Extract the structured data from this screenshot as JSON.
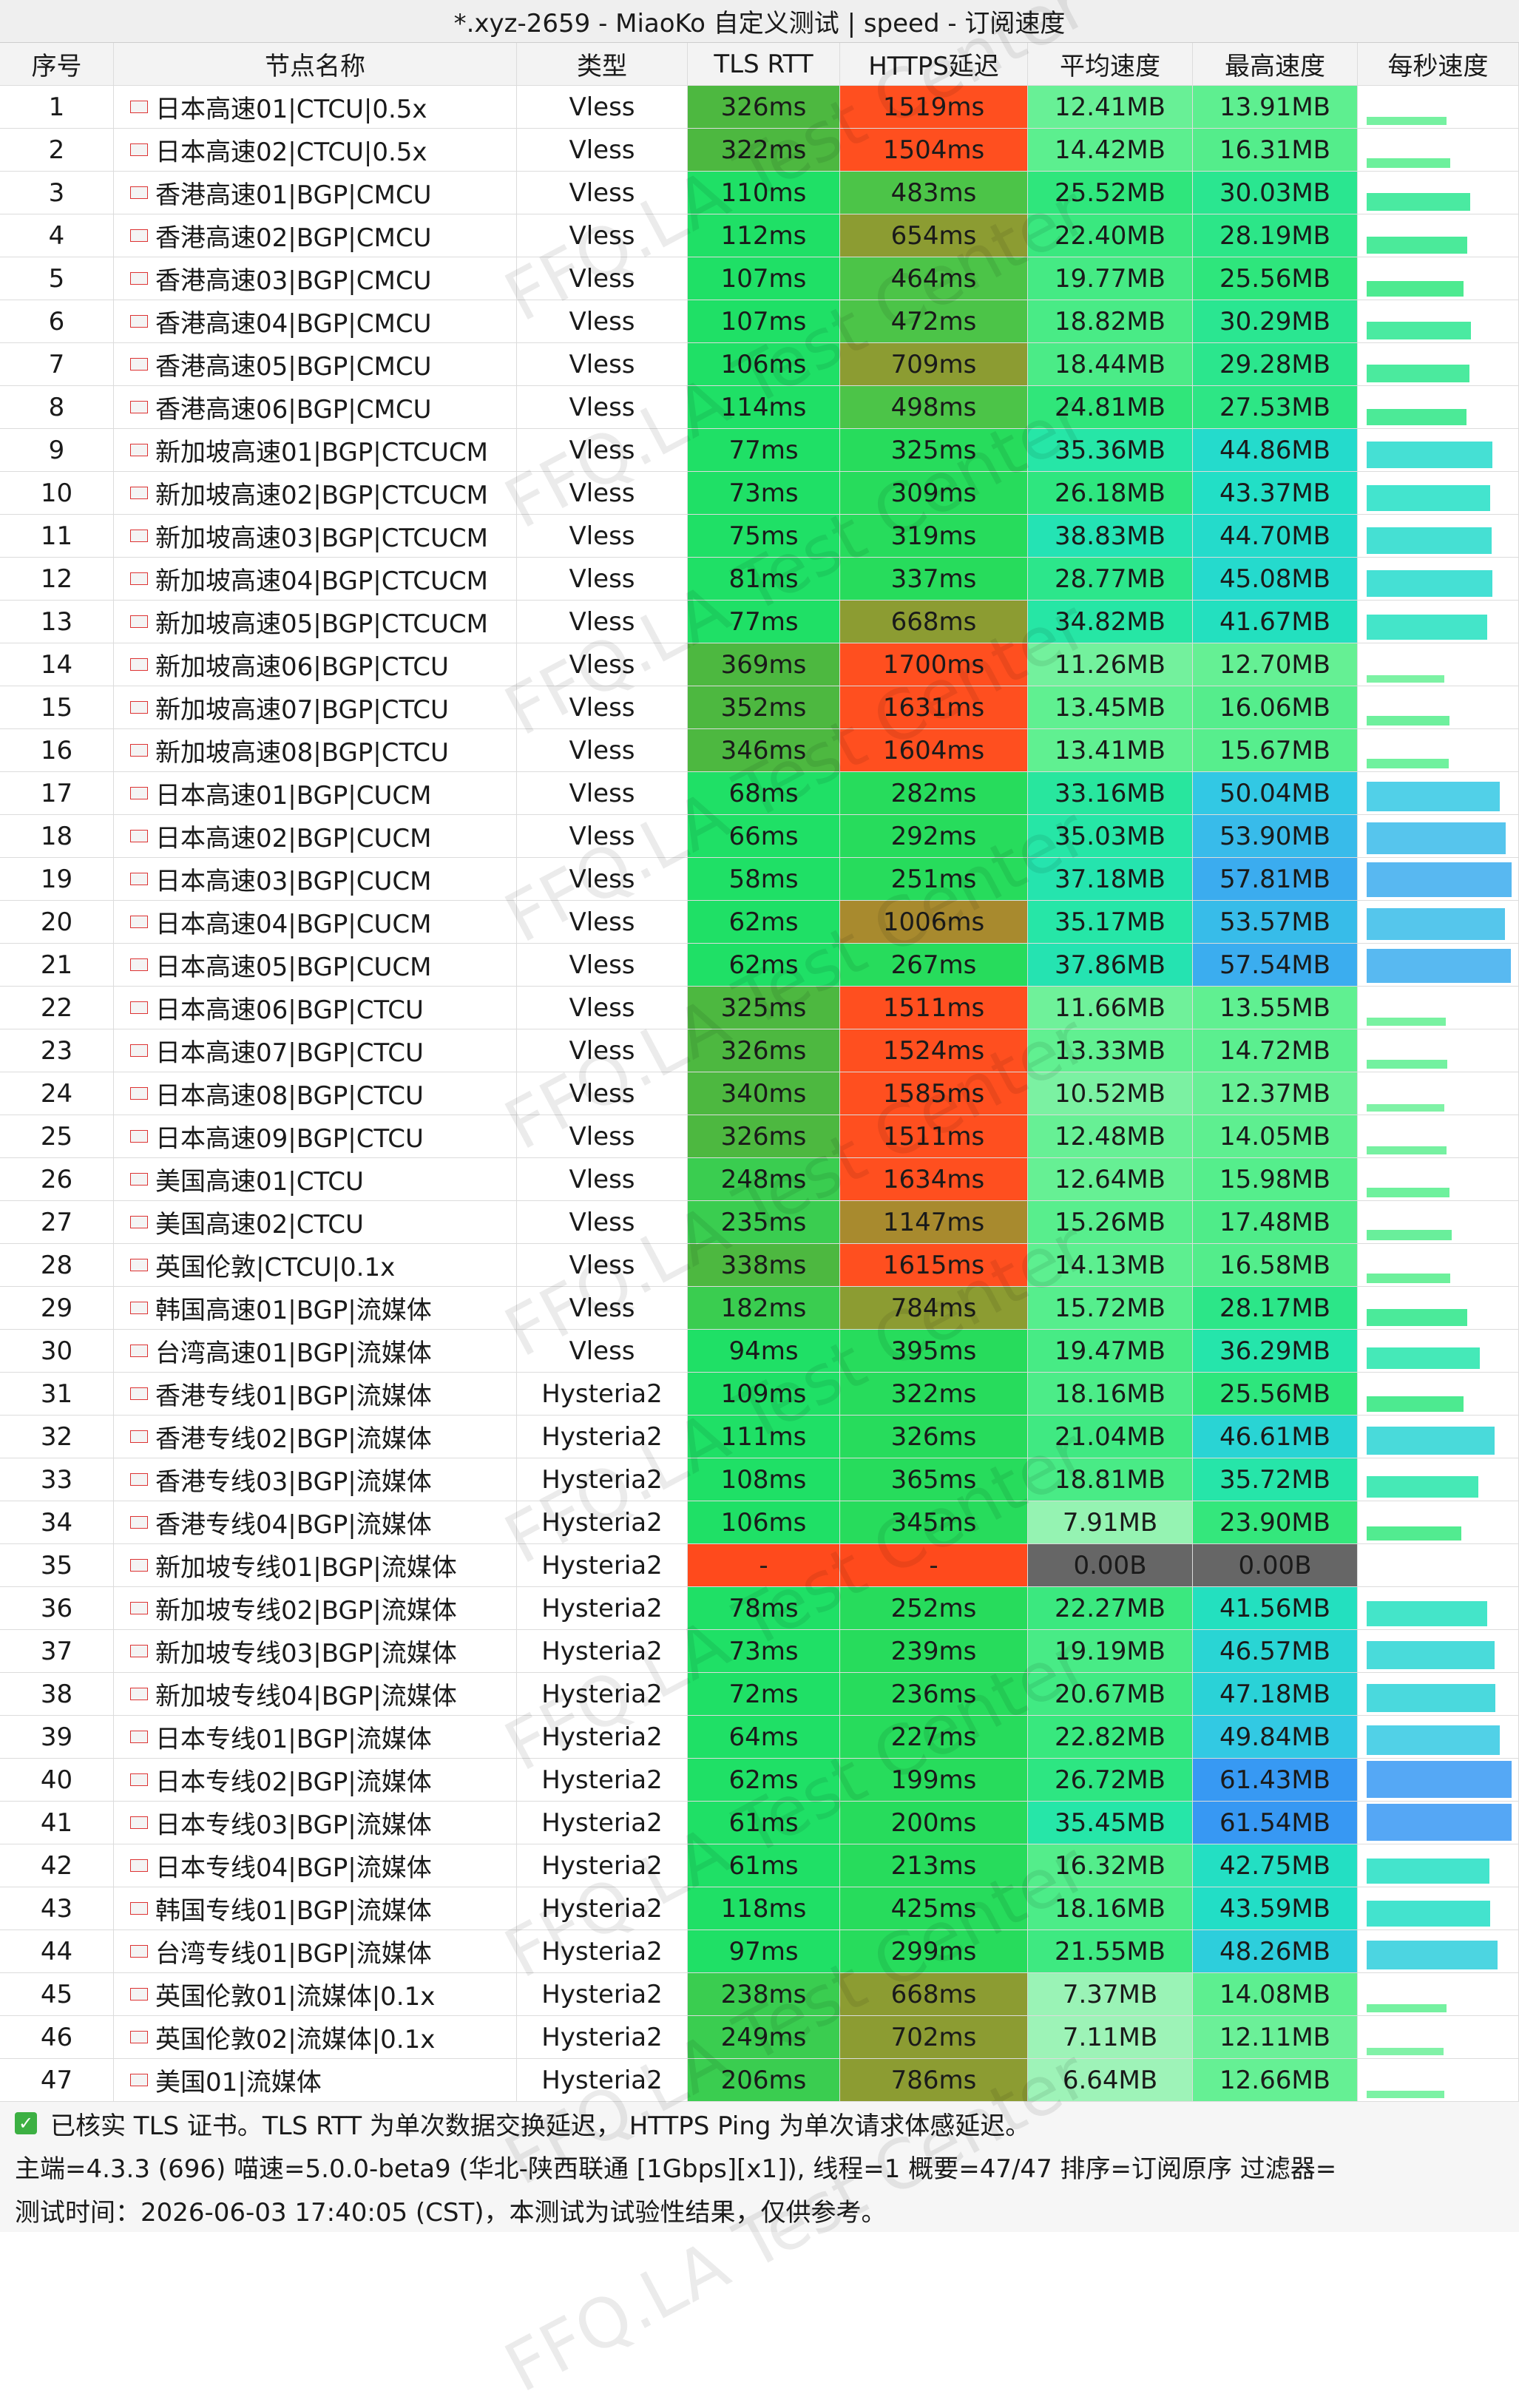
{
  "title": "*.xyz-2659 - MiaoKo 自定义测试 | speed - 订阅速度",
  "watermark": "FFQ.LA Test Center",
  "table": {
    "headers": [
      "序号",
      "节点名称",
      "类型",
      "TLS RTT",
      "HTTPS延迟",
      "平均速度",
      "最高速度",
      "每秒速度"
    ],
    "rows": [
      [
        "1",
        "日本高速01|CTCU|0.5x",
        "Vless",
        "326ms",
        "1519ms",
        "12.41MB",
        "13.91MB"
      ],
      [
        "2",
        "日本高速02|CTCU|0.5x",
        "Vless",
        "322ms",
        "1504ms",
        "14.42MB",
        "16.31MB"
      ],
      [
        "3",
        "香港高速01|BGP|CMCU",
        "Vless",
        "110ms",
        "483ms",
        "25.52MB",
        "30.03MB"
      ],
      [
        "4",
        "香港高速02|BGP|CMCU",
        "Vless",
        "112ms",
        "654ms",
        "22.40MB",
        "28.19MB"
      ],
      [
        "5",
        "香港高速03|BGP|CMCU",
        "Vless",
        "107ms",
        "464ms",
        "19.77MB",
        "25.56MB"
      ],
      [
        "6",
        "香港高速04|BGP|CMCU",
        "Vless",
        "107ms",
        "472ms",
        "18.82MB",
        "30.29MB"
      ],
      [
        "7",
        "香港高速05|BGP|CMCU",
        "Vless",
        "106ms",
        "709ms",
        "18.44MB",
        "29.28MB"
      ],
      [
        "8",
        "香港高速06|BGP|CMCU",
        "Vless",
        "114ms",
        "498ms",
        "24.81MB",
        "27.53MB"
      ],
      [
        "9",
        "新加坡高速01|BGP|CTCUCM",
        "Vless",
        "77ms",
        "325ms",
        "35.36MB",
        "44.86MB"
      ],
      [
        "10",
        "新加坡高速02|BGP|CTCUCM",
        "Vless",
        "73ms",
        "309ms",
        "26.18MB",
        "43.37MB"
      ],
      [
        "11",
        "新加坡高速03|BGP|CTCUCM",
        "Vless",
        "75ms",
        "319ms",
        "38.83MB",
        "44.70MB"
      ],
      [
        "12",
        "新加坡高速04|BGP|CTCUCM",
        "Vless",
        "81ms",
        "337ms",
        "28.77MB",
        "45.08MB"
      ],
      [
        "13",
        "新加坡高速05|BGP|CTCUCM",
        "Vless",
        "77ms",
        "668ms",
        "34.82MB",
        "41.67MB"
      ],
      [
        "14",
        "新加坡高速06|BGP|CTCU",
        "Vless",
        "369ms",
        "1700ms",
        "11.26MB",
        "12.70MB"
      ],
      [
        "15",
        "新加坡高速07|BGP|CTCU",
        "Vless",
        "352ms",
        "1631ms",
        "13.45MB",
        "16.06MB"
      ],
      [
        "16",
        "新加坡高速08|BGP|CTCU",
        "Vless",
        "346ms",
        "1604ms",
        "13.41MB",
        "15.67MB"
      ],
      [
        "17",
        "日本高速01|BGP|CUCM",
        "Vless",
        "68ms",
        "282ms",
        "33.16MB",
        "50.04MB"
      ],
      [
        "18",
        "日本高速02|BGP|CUCM",
        "Vless",
        "66ms",
        "292ms",
        "35.03MB",
        "53.90MB"
      ],
      [
        "19",
        "日本高速03|BGP|CUCM",
        "Vless",
        "58ms",
        "251ms",
        "37.18MB",
        "57.81MB"
      ],
      [
        "20",
        "日本高速04|BGP|CUCM",
        "Vless",
        "62ms",
        "1006ms",
        "35.17MB",
        "53.57MB"
      ],
      [
        "21",
        "日本高速05|BGP|CUCM",
        "Vless",
        "62ms",
        "267ms",
        "37.86MB",
        "57.54MB"
      ],
      [
        "22",
        "日本高速06|BGP|CTCU",
        "Vless",
        "325ms",
        "1511ms",
        "11.66MB",
        "13.55MB"
      ],
      [
        "23",
        "日本高速07|BGP|CTCU",
        "Vless",
        "326ms",
        "1524ms",
        "13.33MB",
        "14.72MB"
      ],
      [
        "24",
        "日本高速08|BGP|CTCU",
        "Vless",
        "340ms",
        "1585ms",
        "10.52MB",
        "12.37MB"
      ],
      [
        "25",
        "日本高速09|BGP|CTCU",
        "Vless",
        "326ms",
        "1511ms",
        "12.48MB",
        "14.05MB"
      ],
      [
        "26",
        "美国高速01|CTCU",
        "Vless",
        "248ms",
        "1634ms",
        "12.64MB",
        "15.98MB"
      ],
      [
        "27",
        "美国高速02|CTCU",
        "Vless",
        "235ms",
        "1147ms",
        "15.26MB",
        "17.48MB"
      ],
      [
        "28",
        "英国伦敦|CTCU|0.1x",
        "Vless",
        "338ms",
        "1615ms",
        "14.13MB",
        "16.58MB"
      ],
      [
        "29",
        "韩国高速01|BGP|流媒体",
        "Vless",
        "182ms",
        "784ms",
        "15.72MB",
        "28.17MB"
      ],
      [
        "30",
        "台湾高速01|BGP|流媒体",
        "Vless",
        "94ms",
        "395ms",
        "19.47MB",
        "36.29MB"
      ],
      [
        "31",
        "香港专线01|BGP|流媒体",
        "Hysteria2",
        "109ms",
        "322ms",
        "18.16MB",
        "25.56MB"
      ],
      [
        "32",
        "香港专线02|BGP|流媒体",
        "Hysteria2",
        "111ms",
        "326ms",
        "21.04MB",
        "46.61MB"
      ],
      [
        "33",
        "香港专线03|BGP|流媒体",
        "Hysteria2",
        "108ms",
        "365ms",
        "18.81MB",
        "35.72MB"
      ],
      [
        "34",
        "香港专线04|BGP|流媒体",
        "Hysteria2",
        "106ms",
        "345ms",
        "7.91MB",
        "23.90MB"
      ],
      [
        "35",
        "新加坡专线01|BGP|流媒体",
        "Hysteria2",
        "-",
        "-",
        "0.00B",
        "0.00B"
      ],
      [
        "36",
        "新加坡专线02|BGP|流媒体",
        "Hysteria2",
        "78ms",
        "252ms",
        "22.27MB",
        "41.56MB"
      ],
      [
        "37",
        "新加坡专线03|BGP|流媒体",
        "Hysteria2",
        "73ms",
        "239ms",
        "19.19MB",
        "46.57MB"
      ],
      [
        "38",
        "新加坡专线04|BGP|流媒体",
        "Hysteria2",
        "72ms",
        "236ms",
        "20.67MB",
        "47.18MB"
      ],
      [
        "39",
        "日本专线01|BGP|流媒体",
        "Hysteria2",
        "64ms",
        "227ms",
        "22.82MB",
        "49.84MB"
      ],
      [
        "40",
        "日本专线02|BGP|流媒体",
        "Hysteria2",
        "62ms",
        "199ms",
        "26.72MB",
        "61.43MB"
      ],
      [
        "41",
        "日本专线03|BGP|流媒体",
        "Hysteria2",
        "61ms",
        "200ms",
        "35.45MB",
        "61.54MB"
      ],
      [
        "42",
        "日本专线04|BGP|流媒体",
        "Hysteria2",
        "61ms",
        "213ms",
        "16.32MB",
        "42.75MB"
      ],
      [
        "43",
        "韩国专线01|BGP|流媒体",
        "Hysteria2",
        "118ms",
        "425ms",
        "18.16MB",
        "43.59MB"
      ],
      [
        "44",
        "台湾专线01|BGP|流媒体",
        "Hysteria2",
        "97ms",
        "299ms",
        "21.55MB",
        "48.26MB"
      ],
      [
        "45",
        "英国伦敦01|流媒体|0.1x",
        "Hysteria2",
        "238ms",
        "668ms",
        "7.37MB",
        "14.08MB"
      ],
      [
        "46",
        "英国伦敦02|流媒体|0.1x",
        "Hysteria2",
        "249ms",
        "702ms",
        "7.11MB",
        "12.11MB"
      ],
      [
        "47",
        "美国01|流媒体",
        "Hysteria2",
        "206ms",
        "786ms",
        "6.64MB",
        "12.66MB"
      ]
    ]
  },
  "footer": [
    "已核实 TLS 证书。TLS RTT 为单次数据交换延迟， HTTPS Ping 为单次请求体感延迟。",
    "主端=4.3.3 (696) 喵速=5.0.0-beta9 (华北-陕西联通 [1Gbps][x1]), 线程=1 概要=47/47 排序=订阅原序 过滤器=",
    "测试时间：2026-06-03 17:40:05 (CST)，本测试为试验性结果，仅供参考。"
  ]
}
